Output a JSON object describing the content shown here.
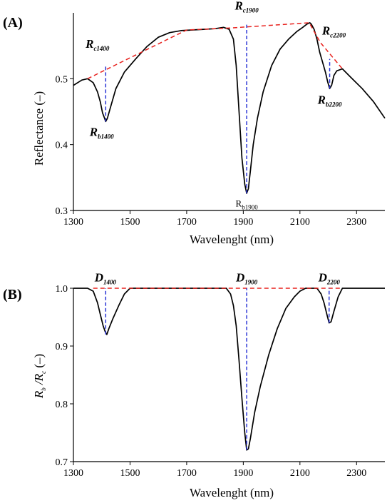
{
  "chart_data": [
    {
      "panel_label": "(A)",
      "type": "line",
      "xlabel": "Wavelenght (nm)",
      "ylabel": "Reflectance (–)",
      "xlim": [
        1300,
        2400
      ],
      "ylim": [
        0.3,
        0.6
      ],
      "xticks": [
        1300,
        1500,
        1700,
        1900,
        2100,
        2300
      ],
      "yticks": [
        0.3,
        0.4,
        0.5
      ],
      "ytick_labels": [
        "0.3",
        "0.4",
        "0.5"
      ],
      "grid": false,
      "series": [
        {
          "role": "spectrum",
          "color": "#000000",
          "x": [
            1300,
            1330,
            1350,
            1370,
            1385,
            1395,
            1403,
            1410,
            1414,
            1420,
            1430,
            1450,
            1480,
            1520,
            1560,
            1600,
            1640,
            1680,
            1720,
            1760,
            1800,
            1830,
            1850,
            1865,
            1875,
            1885,
            1895,
            1905,
            1912,
            1918,
            1925,
            1935,
            1950,
            1970,
            2000,
            2030,
            2060,
            2090,
            2110,
            2125,
            2135,
            2140,
            2150,
            2160,
            2170,
            2180,
            2190,
            2198,
            2205,
            2212,
            2220,
            2230,
            2250,
            2280,
            2320,
            2360,
            2400
          ],
          "y": [
            0.49,
            0.498,
            0.5,
            0.494,
            0.48,
            0.465,
            0.448,
            0.44,
            0.435,
            0.44,
            0.455,
            0.485,
            0.51,
            0.53,
            0.549,
            0.563,
            0.57,
            0.573,
            0.574,
            0.575,
            0.576,
            0.578,
            0.575,
            0.56,
            0.52,
            0.45,
            0.38,
            0.34,
            0.326,
            0.333,
            0.36,
            0.4,
            0.44,
            0.48,
            0.52,
            0.545,
            0.56,
            0.572,
            0.578,
            0.583,
            0.585,
            0.583,
            0.575,
            0.56,
            0.54,
            0.525,
            0.51,
            0.495,
            0.485,
            0.49,
            0.505,
            0.512,
            0.515,
            0.502,
            0.485,
            0.465,
            0.44
          ]
        },
        {
          "role": "continuum",
          "color": "#e8211d",
          "dashed": true,
          "x": [
            1350,
            1700,
            1855,
            2133,
            2172,
            2250
          ],
          "y": [
            0.5,
            0.574,
            0.577,
            0.585,
            0.555,
            0.515
          ]
        }
      ],
      "vlines": [
        {
          "x": 1414,
          "y0": 0.435,
          "y1": 0.52,
          "color": "#2b35d6"
        },
        {
          "x": 1912,
          "y0": 0.326,
          "y1": 0.582,
          "color": "#2b35d6"
        },
        {
          "x": 2205,
          "y0": 0.485,
          "y1": 0.53,
          "color": "#2b35d6"
        }
      ],
      "annotations": [
        {
          "main": "R",
          "sub": "c1400",
          "x": 1385,
          "y": 0.547,
          "style": "bold-italic"
        },
        {
          "main": "R",
          "sub": "b1400",
          "x": 1400,
          "y": 0.413,
          "style": "bold-italic"
        },
        {
          "main": "R",
          "sub": "c1900",
          "x": 1912,
          "y": 0.605,
          "style": "bold-italic"
        },
        {
          "main": "R",
          "sub": "b1900",
          "x": 1912,
          "y": 0.306,
          "style": "regular"
        },
        {
          "main": "R",
          "sub": "c2200",
          "x": 2220,
          "y": 0.567,
          "style": "bold-italic"
        },
        {
          "main": "R",
          "sub": "b2200",
          "x": 2205,
          "y": 0.462,
          "style": "bold-italic"
        }
      ]
    },
    {
      "panel_label": "(B)",
      "type": "line",
      "xlabel": "Wavelenght (nm)",
      "ylabel_main": "R",
      "ylabel_sub1": "b",
      "ylabel_mid": " /R",
      "ylabel_sub2": "c",
      "ylabel_tail": " (–)",
      "xlim": [
        1300,
        2400
      ],
      "ylim": [
        0.7,
        1.0
      ],
      "xticks": [
        1300,
        1500,
        1700,
        1900,
        2100,
        2300
      ],
      "yticks": [
        0.7,
        0.8,
        0.9,
        1.0
      ],
      "ytick_labels": [
        "0.7",
        "0.8",
        "0.9",
        "1.0"
      ],
      "grid": false,
      "series": [
        {
          "role": "continuum-removed",
          "color": "#000000",
          "x": [
            1300,
            1350,
            1370,
            1385,
            1395,
            1405,
            1412,
            1418,
            1425,
            1440,
            1460,
            1480,
            1500,
            1600,
            1700,
            1800,
            1840,
            1855,
            1865,
            1875,
            1885,
            1895,
            1905,
            1912,
            1918,
            1925,
            1940,
            1960,
            1990,
            2020,
            2050,
            2080,
            2100,
            2120,
            2133,
            2160,
            2175,
            2185,
            2195,
            2203,
            2210,
            2220,
            2235,
            2250,
            2300,
            2400
          ],
          "y": [
            1.0,
            1.0,
            0.995,
            0.975,
            0.955,
            0.935,
            0.925,
            0.92,
            0.93,
            0.948,
            0.97,
            0.99,
            1.0,
            1.0,
            1.0,
            1.0,
            1.0,
            0.99,
            0.97,
            0.935,
            0.875,
            0.81,
            0.75,
            0.72,
            0.722,
            0.74,
            0.785,
            0.83,
            0.885,
            0.93,
            0.965,
            0.985,
            0.995,
            1.0,
            1.0,
            1.0,
            0.99,
            0.975,
            0.955,
            0.94,
            0.942,
            0.96,
            0.985,
            1.0,
            1.0,
            1.0
          ]
        },
        {
          "role": "continuum",
          "color": "#e8211d",
          "dashed": true,
          "x": [
            1370,
            1500,
            1840,
            2133,
            2160,
            2250
          ],
          "y": [
            1.0,
            1.0,
            1.0,
            1.0,
            1.0,
            1.0
          ]
        }
      ],
      "vlines": [
        {
          "x": 1414,
          "y0": 0.92,
          "y1": 1.0,
          "color": "#2b35d6"
        },
        {
          "x": 1912,
          "y0": 0.72,
          "y1": 1.0,
          "color": "#2b35d6"
        },
        {
          "x": 2203,
          "y0": 0.94,
          "y1": 1.0,
          "color": "#2b35d6"
        }
      ],
      "annotations": [
        {
          "main": "D",
          "sub": "1400",
          "x": 1413,
          "y": 1.012,
          "style": "bold-italic"
        },
        {
          "main": "D",
          "sub": "1900",
          "x": 1912,
          "y": 1.012,
          "style": "bold-italic"
        },
        {
          "main": "D",
          "sub": "2200",
          "x": 2203,
          "y": 1.012,
          "style": "bold-italic"
        }
      ]
    }
  ]
}
